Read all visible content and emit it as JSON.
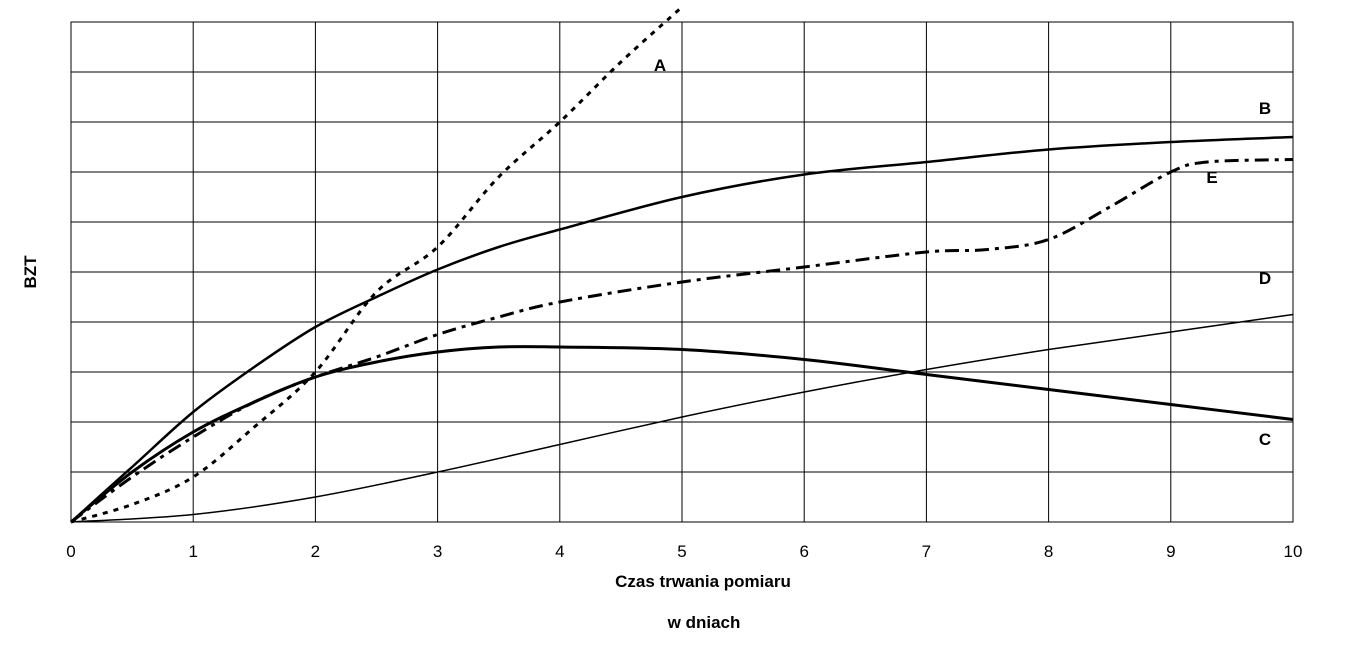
{
  "chart_data": {
    "type": "line",
    "xlabel": "Czas trwania pomiaru",
    "xlabel_line2": "w dniach",
    "ylabel": "BZT",
    "xlim": [
      0,
      10
    ],
    "ylim": [
      0,
      10
    ],
    "x_ticks": [
      "0",
      "1",
      "2",
      "3",
      "4",
      "5",
      "6",
      "7",
      "8",
      "9",
      "10"
    ],
    "y_grid_count": 10,
    "grid": true,
    "series": [
      {
        "name": "A",
        "style": "dotted",
        "points": [
          [
            0,
            0
          ],
          [
            0.5,
            0.35
          ],
          [
            1,
            0.9
          ],
          [
            1.5,
            1.9
          ],
          [
            2,
            3.0
          ],
          [
            2.5,
            4.6
          ],
          [
            3,
            5.5
          ],
          [
            3.5,
            6.9
          ],
          [
            4,
            8.0
          ],
          [
            4.5,
            9.2
          ],
          [
            5,
            10.3
          ]
        ]
      },
      {
        "name": "B",
        "style": "solid",
        "points": [
          [
            0,
            0
          ],
          [
            0.5,
            1.1
          ],
          [
            1,
            2.2
          ],
          [
            1.5,
            3.1
          ],
          [
            2,
            3.9
          ],
          [
            2.5,
            4.5
          ],
          [
            3,
            5.05
          ],
          [
            3.5,
            5.5
          ],
          [
            4,
            5.85
          ],
          [
            5,
            6.5
          ],
          [
            6,
            6.95
          ],
          [
            7,
            7.2
          ],
          [
            8,
            7.45
          ],
          [
            9,
            7.6
          ],
          [
            10,
            7.7
          ]
        ]
      },
      {
        "name": "C",
        "style": "solid-thick",
        "points": [
          [
            0,
            0
          ],
          [
            0.5,
            1.0
          ],
          [
            1,
            1.8
          ],
          [
            1.5,
            2.4
          ],
          [
            2,
            2.9
          ],
          [
            2.5,
            3.2
          ],
          [
            3,
            3.4
          ],
          [
            3.5,
            3.5
          ],
          [
            4,
            3.5
          ],
          [
            5,
            3.45
          ],
          [
            6,
            3.25
          ],
          [
            7,
            2.95
          ],
          [
            8,
            2.65
          ],
          [
            9,
            2.35
          ],
          [
            10,
            2.05
          ]
        ]
      },
      {
        "name": "D",
        "style": "solid-thin",
        "points": [
          [
            0,
            0
          ],
          [
            1,
            0.15
          ],
          [
            2,
            0.5
          ],
          [
            3,
            1.0
          ],
          [
            4,
            1.55
          ],
          [
            5,
            2.1
          ],
          [
            6,
            2.6
          ],
          [
            7,
            3.05
          ],
          [
            8,
            3.45
          ],
          [
            9,
            3.8
          ],
          [
            10,
            4.15
          ]
        ]
      },
      {
        "name": "E",
        "style": "dash-dot",
        "points": [
          [
            0,
            0
          ],
          [
            0.5,
            0.9
          ],
          [
            1,
            1.7
          ],
          [
            1.5,
            2.4
          ],
          [
            2,
            2.9
          ],
          [
            2.5,
            3.3
          ],
          [
            3,
            3.75
          ],
          [
            3.5,
            4.1
          ],
          [
            4,
            4.4
          ],
          [
            5,
            4.8
          ],
          [
            6,
            5.1
          ],
          [
            7,
            5.4
          ],
          [
            7.5,
            5.45
          ],
          [
            8,
            5.65
          ],
          [
            8.5,
            6.3
          ],
          [
            9,
            7.0
          ],
          [
            9.3,
            7.2
          ],
          [
            10,
            7.25
          ]
        ]
      }
    ]
  }
}
